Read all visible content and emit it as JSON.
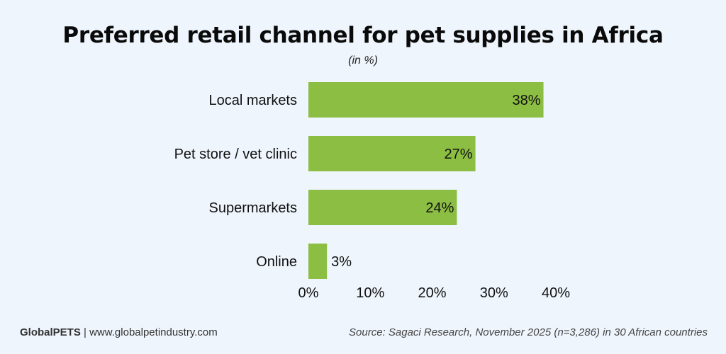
{
  "header": {
    "title": "Preferred retail channel for pet supplies in Africa",
    "subtitle": "(in %)"
  },
  "footer": {
    "brand": "GlobalPETS",
    "separator": " | ",
    "website": "www.globalpetindustry.com",
    "source": "Source: Sagaci Research, November 2025 (n=3,286) in 30 African countries"
  },
  "colors": {
    "bar": "#8bbe42",
    "background": "#eef5fc"
  },
  "chart_data": {
    "type": "bar",
    "orientation": "horizontal",
    "title": "Preferred retail channel for pet supplies in Africa",
    "subtitle": "(in %)",
    "categories": [
      "Local markets",
      "Pet store / vet clinic",
      "Supermarkets",
      "Online"
    ],
    "values": [
      38,
      27,
      24,
      3
    ],
    "data_labels": [
      "38%",
      "27%",
      "24%",
      "3%"
    ],
    "xlim": [
      0,
      40
    ],
    "xticks": [
      0,
      10,
      20,
      30,
      40
    ],
    "xtick_labels": [
      "0%",
      "10%",
      "20%",
      "30%",
      "40%"
    ],
    "grid": false,
    "legend": "none"
  }
}
